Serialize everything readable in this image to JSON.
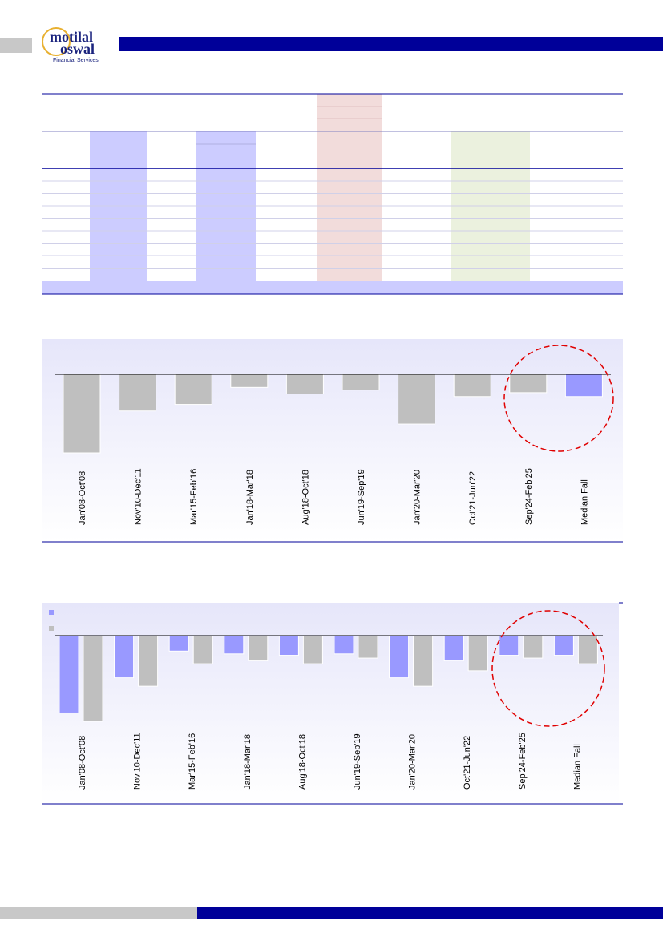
{
  "header": {
    "logo_line1": "motilal",
    "logo_line2": "oswal",
    "logo_line3": "Financial Services"
  },
  "chart_data": [
    {
      "type": "bar",
      "categories": [
        "Jan'08-Oct'08",
        "Nov'10-Dec'11",
        "Mar'15-Feb'16",
        "Jan'18-Mar'18",
        "Aug'18-Oct'18",
        "Jun'19-Sep'19",
        "Jan'20-Mar'20",
        "Oct'21-Jun'22",
        "Sep'24-Feb'25",
        "Median Fall"
      ],
      "values": [
        -60,
        -28,
        -23,
        -10,
        -15,
        -12,
        -38,
        -17,
        -14,
        -17
      ],
      "colors": [
        "#bfbfbf",
        "#bfbfbf",
        "#bfbfbf",
        "#bfbfbf",
        "#bfbfbf",
        "#bfbfbf",
        "#bfbfbf",
        "#bfbfbf",
        "#bfbfbf",
        "#9999ff"
      ],
      "ylim": [
        -60,
        0
      ]
    },
    {
      "type": "grouped-bar",
      "categories": [
        "Jan'08-Oct'08",
        "Nov'10-Dec'11",
        "Mar'15-Feb'16",
        "Jan'18-Mar'18",
        "Aug'18-Oct'18",
        "Jun'19-Sep'19",
        "Jan'20-Mar'20",
        "Oct'21-Jun'22",
        "Sep'24-Feb'25",
        "Median Fall"
      ],
      "series": [
        {
          "color": "#9999ff",
          "values": [
            -55,
            -30,
            -11,
            -13,
            -14,
            -13,
            -30,
            -18,
            -14,
            -14
          ]
        },
        {
          "color": "#bfbfbf",
          "values": [
            -61,
            -36,
            -20,
            -18,
            -20,
            -16,
            -36,
            -25,
            -16,
            -20
          ]
        }
      ],
      "ylim": [
        -61,
        0
      ]
    }
  ]
}
